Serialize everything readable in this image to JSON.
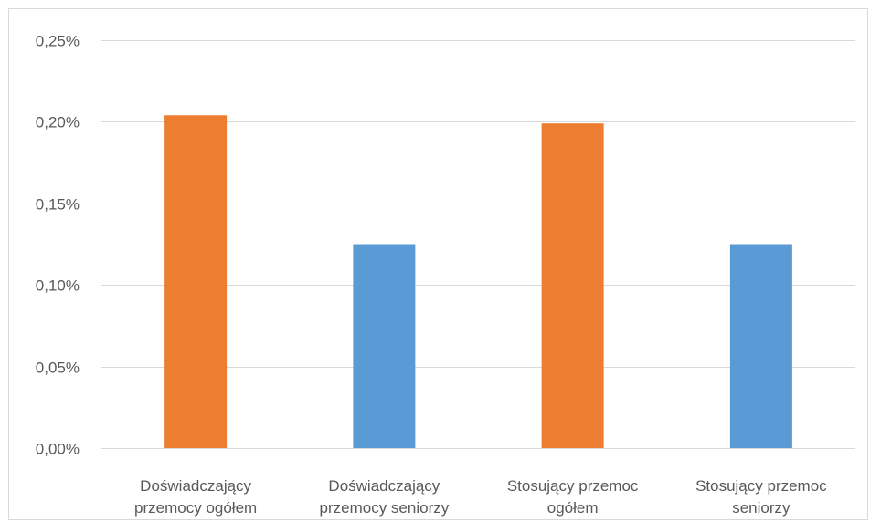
{
  "chart_data": {
    "type": "bar",
    "title": "",
    "xlabel": "",
    "ylabel": "",
    "categories": [
      [
        "Doświadczający",
        "przemocy ogółem"
      ],
      [
        "Doświadczający",
        "przemocy seniorzy"
      ],
      [
        "Stosujący przemoc",
        "ogółem"
      ],
      [
        "Stosujący przemoc",
        "seniorzy"
      ]
    ],
    "values": [
      0.00204,
      0.00125,
      0.00199,
      0.00125
    ],
    "bar_colors": [
      "#ed7d31",
      "#5b9bd5",
      "#ed7d31",
      "#5b9bd5"
    ],
    "ylim": [
      0,
      0.0025
    ],
    "y_ticks": [
      {
        "value": 0.0025,
        "label": "0,25%"
      },
      {
        "value": 0.002,
        "label": "0,20%"
      },
      {
        "value": 0.0015,
        "label": "0,15%"
      },
      {
        "value": 0.001,
        "label": "0,10%"
      },
      {
        "value": 0.0005,
        "label": "0,05%"
      },
      {
        "value": 0,
        "label": "0,00%"
      }
    ],
    "grid": true,
    "legend": "none"
  },
  "colors": {
    "gridline": "#d9d9d9",
    "axis_text": "#595959"
  }
}
